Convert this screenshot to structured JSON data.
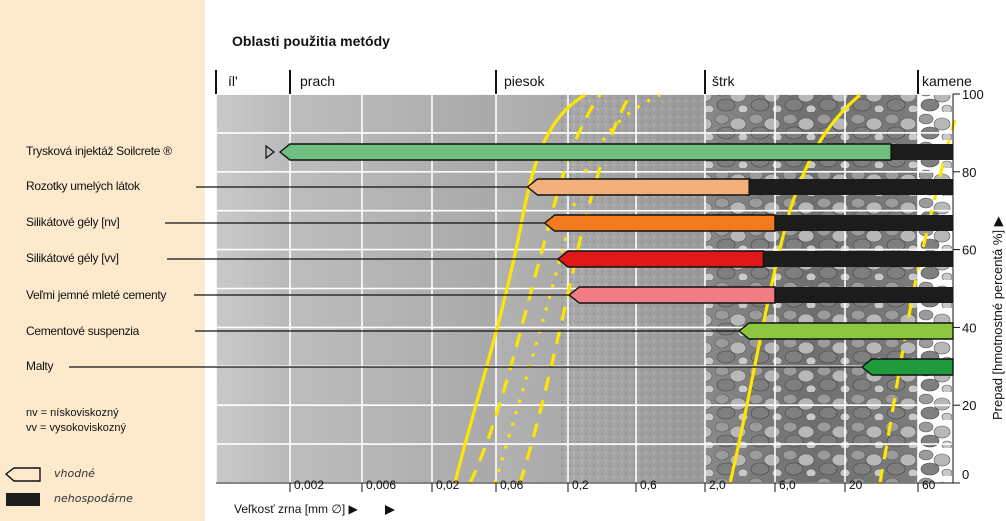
{
  "title": "Oblasti použitia metódy",
  "bands": [
    "íl'",
    "prach",
    "piesok",
    "štrk",
    "kamene"
  ],
  "methods": [
    {
      "name": "Trysková injektáž Soilcrete ®",
      "color": "#6fbf7f",
      "suitable_from": 0.002,
      "suitable_to": 40
    },
    {
      "name": "Rozotky umelých látok",
      "color": "#f4b07a",
      "suitable_from": 0.12,
      "suitable_to": 4
    },
    {
      "name": "Silikátové gély [nv]",
      "color": "#f47a20",
      "suitable_from": 0.16,
      "suitable_to": 6
    },
    {
      "name": "Silikátové gély [vv]",
      "color": "#e01818",
      "suitable_from": 0.2,
      "suitable_to": 5
    },
    {
      "name": "Veľmi jemné mleté cementy",
      "color": "#ef7d83",
      "suitable_from": 0.24,
      "suitable_to": 6
    },
    {
      "name": "Cementové suspenzia",
      "color": "#8dc63f",
      "suitable_from": 4,
      "suitable_to": null
    },
    {
      "name": "Malty",
      "color": "#1f9a3c",
      "suitable_from": 30,
      "suitable_to": null
    }
  ],
  "x_ticks": [
    "0,002",
    "0,006",
    "0,02",
    "0,06",
    "0,2",
    "0,6",
    "2,0",
    "6,0",
    "20",
    "60"
  ],
  "x_axis_label": "Veľkosť zrna [mm ∅] ▶",
  "y_ticks": [
    "100",
    "80",
    "60",
    "40",
    "20",
    "0"
  ],
  "y_axis_label": "Prepad [hmotnostné percentá %] ▶",
  "notes": [
    "nv = nískoviskozný",
    "vv = vysokoviskozný"
  ],
  "legend": {
    "suitable": "vhodné",
    "uneconomic": "nehospodárne"
  },
  "colors": {
    "uneconomic": "#1c1c1c",
    "grading_curves": "#ffe600",
    "sidebar_bg": "#fde9cc"
  },
  "chart_data": {
    "type": "bar",
    "x_scale": "log",
    "x_unit": "mm",
    "y_range": [
      0,
      100
    ],
    "categories": [
      "Trysková injektáž Soilcrete ®",
      "Rozotky umelých látok",
      "Silikátové gély [nv]",
      "Silikátové gély [vv]",
      "Veľmi jemné mleté cementy",
      "Cementové suspenzia",
      "Malty"
    ],
    "suitable_range_mm": [
      [
        0.002,
        40
      ],
      [
        0.12,
        4
      ],
      [
        0.16,
        6
      ],
      [
        0.2,
        5
      ],
      [
        0.24,
        6
      ],
      [
        4,
        63
      ],
      [
        30,
        63
      ]
    ],
    "uneconomic_range_mm": [
      [
        40,
        63
      ],
      [
        4,
        63
      ],
      [
        6,
        63
      ],
      [
        5,
        63
      ],
      [
        6,
        63
      ],
      null,
      null
    ]
  }
}
